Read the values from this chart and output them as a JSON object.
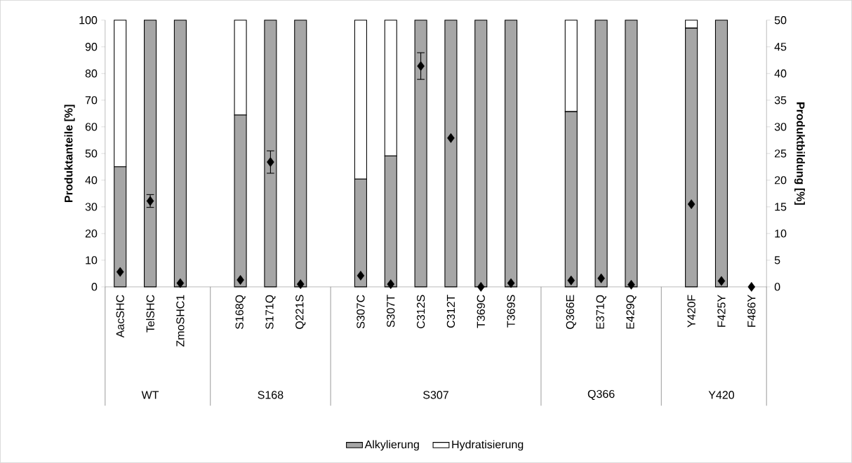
{
  "chart_data": {
    "type": "bar",
    "stacked": true,
    "categories": [
      "AacSHC",
      "TelSHC",
      "ZmoSHC1",
      null,
      "S168Q",
      "S171Q",
      "Q221S",
      null,
      "S307C",
      "S307T",
      "C312S",
      "C312T",
      "T369C",
      "T369S",
      null,
      "Q366E",
      "E371Q",
      "E429Q",
      null,
      "Y420F",
      "F425Y",
      "F486Y"
    ],
    "series": [
      {
        "name": "Alkylierung",
        "color": "#a6a6a6",
        "values": [
          45,
          100,
          100,
          null,
          64.4,
          100,
          100,
          null,
          40.4,
          49.1,
          100,
          100,
          100,
          100,
          null,
          65.7,
          100,
          100,
          null,
          97,
          100,
          null
        ]
      },
      {
        "name": "Hydratisierung",
        "color": "#ffffff",
        "values": [
          55,
          0,
          0,
          null,
          35.6,
          0,
          0,
          null,
          59.6,
          50.9,
          0,
          0,
          0,
          0,
          null,
          34.3,
          0,
          0,
          null,
          3,
          0,
          null
        ]
      },
      {
        "type": "scatter",
        "axis": "y2",
        "color": "#000000",
        "marker": "diamond",
        "values": [
          2.8,
          16.1,
          0.7,
          null,
          1.3,
          23.4,
          0.5,
          null,
          2.1,
          0.5,
          41.4,
          27.9,
          0,
          0.7,
          null,
          1.2,
          1.6,
          0.4,
          null,
          15.5,
          1.1,
          0
        ],
        "errors": [
          null,
          1.2,
          null,
          null,
          null,
          2.1,
          null,
          null,
          null,
          null,
          2.5,
          null,
          null,
          null,
          null,
          null,
          null,
          null,
          null,
          null,
          null,
          null
        ]
      }
    ],
    "ylim": [
      0,
      100
    ],
    "yticks": [
      0,
      10,
      20,
      30,
      40,
      50,
      60,
      70,
      80,
      90,
      100
    ],
    "y2lim": [
      0,
      50
    ],
    "y2ticks": [
      0,
      5,
      10,
      15,
      20,
      25,
      30,
      35,
      40,
      45,
      50
    ],
    "ylabel": "Produktanteile [%]",
    "y2label": "Produktbildung [%]",
    "legend": "bottom",
    "annotations": [
      "WT",
      "S168",
      "S307",
      "Q366",
      "Y420"
    ]
  }
}
